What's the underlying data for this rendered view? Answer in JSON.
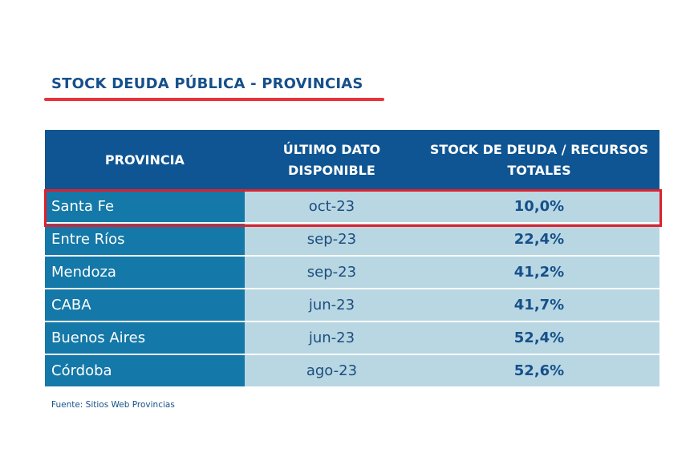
{
  "title": "STOCK DEUDA PÚBLICA - PROVINCIAS",
  "colors": {
    "header": "#0f5593",
    "province_column": "#1478a8",
    "cells": "#b8d7e3",
    "highlight": "#e0202b",
    "accent_underline": "#e8333a"
  },
  "chart_data": {
    "type": "table",
    "columns": [
      "PROVINCIA",
      "ÚLTIMO DATO DISPONIBLE",
      "STOCK DE DEUDA / RECURSOS TOTALES"
    ],
    "rows": [
      [
        "Santa Fe",
        "oct-23",
        "10,0%"
      ],
      [
        "Entre Ríos",
        "sep-23",
        "22,4%"
      ],
      [
        "Mendoza",
        "sep-23",
        "41,2%"
      ],
      [
        "CABA",
        "jun-23",
        "41,7%"
      ],
      [
        "Buenos Aires",
        "jun-23",
        "52,4%"
      ],
      [
        "Córdoba",
        "ago-23",
        "52,6%"
      ]
    ],
    "highlighted_row": "Santa Fe"
  },
  "source": "Fuente: Sitios Web Provincias"
}
